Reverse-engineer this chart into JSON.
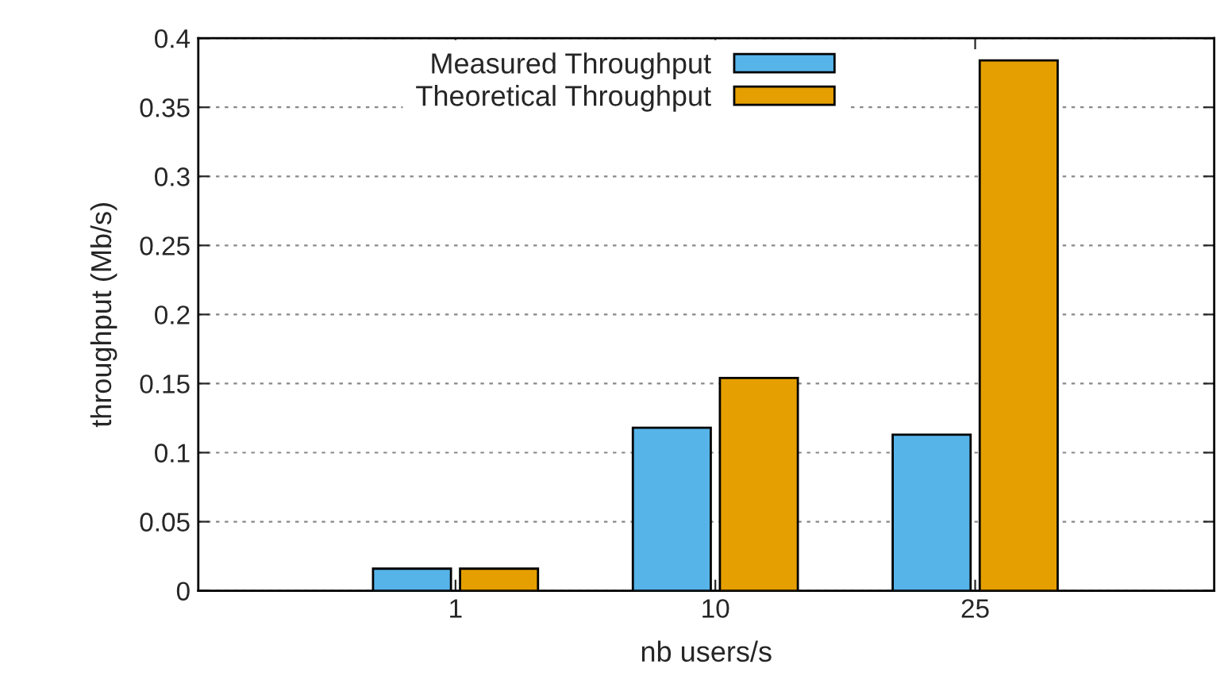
{
  "chart_data": {
    "type": "bar",
    "xlabel": "nb users/s",
    "ylabel": "throughput (Mb/s)",
    "categories": [
      "1",
      "10",
      "25"
    ],
    "series": [
      {
        "name": "Measured Throughput",
        "color": "#56b4e9",
        "values": [
          0.016,
          0.118,
          0.113
        ]
      },
      {
        "name": "Theoretical Throughput",
        "color": "#e69f00",
        "values": [
          0.016,
          0.154,
          0.384
        ]
      }
    ],
    "ylim": [
      0,
      0.4
    ],
    "yticks": [
      0,
      0.05,
      0.1,
      0.15,
      0.2,
      0.25,
      0.3,
      0.35,
      0.4
    ],
    "grid": "y",
    "legend": "top"
  }
}
